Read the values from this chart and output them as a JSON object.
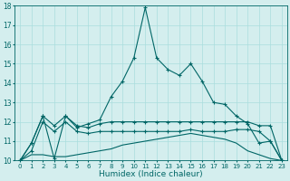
{
  "xlabel": "Humidex (Indice chaleur)",
  "xlim": [
    -0.5,
    23.5
  ],
  "ylim": [
    10,
    18
  ],
  "x": [
    0,
    1,
    2,
    3,
    4,
    5,
    6,
    7,
    8,
    9,
    10,
    11,
    12,
    13,
    14,
    15,
    16,
    17,
    18,
    19,
    20,
    21,
    22,
    23
  ],
  "line1": [
    10.0,
    10.9,
    12.3,
    10.1,
    12.3,
    11.7,
    11.9,
    12.1,
    13.3,
    14.1,
    15.3,
    17.9,
    15.3,
    14.7,
    14.4,
    15.0,
    14.1,
    13.0,
    12.9,
    12.3,
    11.9,
    10.9,
    11.0,
    10.0
  ],
  "line2": [
    10.0,
    10.9,
    12.3,
    11.8,
    12.3,
    11.8,
    11.7,
    11.9,
    12.0,
    12.0,
    12.0,
    12.0,
    12.0,
    12.0,
    12.0,
    12.0,
    12.0,
    12.0,
    12.0,
    12.0,
    12.0,
    11.8,
    11.8,
    10.0
  ],
  "line3": [
    10.0,
    10.5,
    12.0,
    11.5,
    12.0,
    11.5,
    11.4,
    11.5,
    11.5,
    11.5,
    11.5,
    11.5,
    11.5,
    11.5,
    11.5,
    11.6,
    11.5,
    11.5,
    11.5,
    11.6,
    11.6,
    11.5,
    11.0,
    10.0
  ],
  "line4": [
    10.0,
    10.3,
    10.3,
    10.2,
    10.2,
    10.3,
    10.4,
    10.5,
    10.6,
    10.8,
    10.9,
    11.0,
    11.1,
    11.2,
    11.3,
    11.4,
    11.3,
    11.2,
    11.1,
    10.9,
    10.5,
    10.3,
    10.1,
    10.0
  ],
  "line_color": "#006666",
  "bg_color": "#d4eeee",
  "grid_color": "#aadddd",
  "xticks": [
    0,
    1,
    2,
    3,
    4,
    5,
    6,
    7,
    8,
    9,
    10,
    11,
    12,
    13,
    14,
    15,
    16,
    17,
    18,
    19,
    20,
    21,
    22,
    23
  ],
  "yticks": [
    10,
    11,
    12,
    13,
    14,
    15,
    16,
    17,
    18
  ]
}
